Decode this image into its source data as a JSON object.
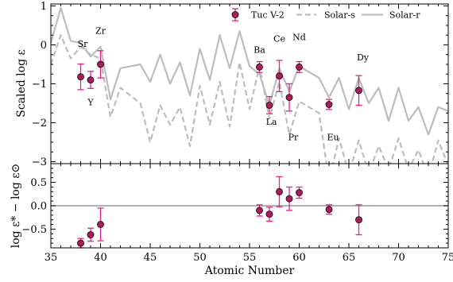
{
  "chart_data": [
    {
      "type": "line",
      "panel": "top",
      "ylabel": "Scaled log ε",
      "xlim": [
        35,
        75
      ],
      "ylim": [
        -3.05,
        1.05
      ],
      "yticks": [
        -3,
        -2,
        -1,
        0,
        1
      ],
      "ytick_labels": [
        "−3",
        "−2",
        "−1",
        "0",
        "1"
      ],
      "legend": {
        "placement": "top-right",
        "entries": [
          "Tuc V-2",
          "Solar-s",
          "Solar-r"
        ]
      },
      "series": [
        {
          "name": "Solar-r",
          "style": "solid",
          "color": "#bdbdbd",
          "x": [
            35,
            36,
            37,
            38,
            39,
            40,
            41,
            42,
            44,
            45,
            46,
            47,
            48,
            49,
            50,
            51,
            52,
            53,
            54,
            55,
            56,
            57,
            58,
            59,
            60,
            62,
            63,
            64,
            65,
            66,
            67,
            68,
            69,
            70,
            71,
            72,
            73,
            74,
            75
          ],
          "y": [
            0.05,
            0.95,
            0.1,
            0.05,
            -0.3,
            -0.05,
            -1.4,
            -0.6,
            -0.5,
            -0.95,
            -0.25,
            -1.0,
            -0.45,
            -1.3,
            -0.1,
            -0.9,
            0.25,
            -0.6,
            0.35,
            -0.55,
            -0.75,
            -1.55,
            -0.6,
            -1.2,
            -0.55,
            -0.85,
            -1.35,
            -0.85,
            -1.65,
            -0.85,
            -1.5,
            -1.1,
            -1.95,
            -1.1,
            -1.95,
            -1.6,
            -2.3,
            -1.6,
            -1.7
          ]
        },
        {
          "name": "Solar-s",
          "style": "dashed",
          "color": "#bdbdbd",
          "x": [
            35,
            36,
            37,
            38,
            39,
            40,
            41,
            42,
            44,
            45,
            46,
            47,
            48,
            49,
            50,
            51,
            52,
            53,
            54,
            55,
            56,
            57,
            58,
            59,
            60,
            62,
            63,
            64,
            65,
            66,
            67,
            68,
            69,
            70,
            71,
            72,
            73,
            74,
            75
          ],
          "y": [
            -0.5,
            0.25,
            -0.35,
            -0.05,
            -0.25,
            -0.35,
            -1.85,
            -1.1,
            -1.5,
            -2.5,
            -1.55,
            -2.05,
            -1.6,
            -2.6,
            -1.05,
            -2.05,
            -0.95,
            -2.1,
            -0.45,
            -1.65,
            -0.55,
            -1.9,
            -0.95,
            -2.3,
            -1.45,
            -1.75,
            -3.5,
            -2.4,
            -3.3,
            -2.45,
            -3.3,
            -2.6,
            -3.2,
            -2.4,
            -3.2,
            -2.7,
            -3.4,
            -2.45,
            -3.1
          ]
        },
        {
          "name": "Tuc V-2",
          "style": "points",
          "color": "#e6218a",
          "x": [
            38,
            39,
            40,
            56,
            57,
            58,
            59,
            60,
            63,
            66
          ],
          "y": [
            -0.82,
            -0.9,
            -0.5,
            -0.57,
            -1.55,
            -0.8,
            -1.35,
            -0.57,
            -1.53,
            -1.17
          ],
          "yerr": [
            0.33,
            0.22,
            0.35,
            0.14,
            0.22,
            0.4,
            0.35,
            0.14,
            0.13,
            0.38
          ]
        }
      ],
      "annotations": [
        {
          "text": "Sr",
          "x": 38.2,
          "y": -0.05
        },
        {
          "text": "Y",
          "x": 39,
          "y": -1.55
        },
        {
          "text": "Zr",
          "x": 40,
          "y": 0.28
        },
        {
          "text": "Ba",
          "x": 56,
          "y": -0.2
        },
        {
          "text": "La",
          "x": 57.2,
          "y": -2.05
        },
        {
          "text": "Ce",
          "x": 58,
          "y": 0.08
        },
        {
          "text": "Pr",
          "x": 59.4,
          "y": -2.45
        },
        {
          "text": "Nd",
          "x": 60,
          "y": 0.12
        },
        {
          "text": "Eu",
          "x": 63.4,
          "y": -2.45
        },
        {
          "text": "Dy",
          "x": 66.4,
          "y": -0.4
        }
      ]
    },
    {
      "type": "scatter",
      "panel": "bottom",
      "xlabel": "Atomic Number",
      "ylabel": "log ε* − log ε⊙",
      "xlim": [
        35,
        75
      ],
      "ylim": [
        -0.9,
        0.9
      ],
      "xticks": [
        35,
        40,
        45,
        50,
        55,
        60,
        65,
        70,
        75
      ],
      "xtick_labels": [
        "35",
        "40",
        "45",
        "50",
        "55",
        "60",
        "65",
        "70",
        "75"
      ],
      "yticks": [
        -0.5,
        0.0,
        0.5
      ],
      "ytick_labels": [
        "−0.5",
        "0.0",
        "0.5"
      ],
      "reference_line": 0.0,
      "series": [
        {
          "name": "Tuc V-2",
          "color": "#e6218a",
          "x": [
            38,
            39,
            40,
            56,
            57,
            58,
            59,
            60,
            63,
            66
          ],
          "y": [
            -0.8,
            -0.62,
            -0.4,
            -0.1,
            -0.18,
            0.3,
            0.15,
            0.28,
            -0.08,
            -0.3
          ],
          "yerr": [
            0.1,
            0.14,
            0.35,
            0.12,
            0.15,
            0.32,
            0.25,
            0.12,
            0.1,
            0.32
          ]
        }
      ]
    }
  ]
}
